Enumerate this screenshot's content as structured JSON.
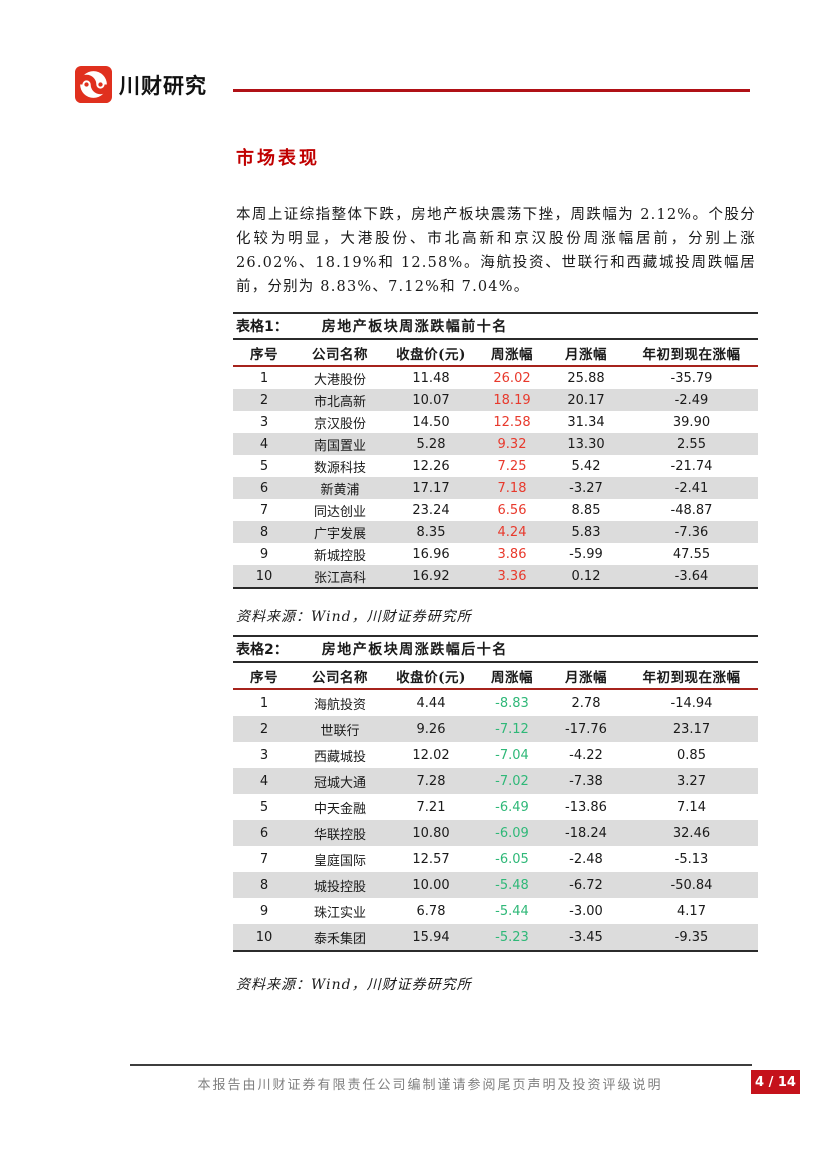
{
  "header": {
    "brand": "川财研究"
  },
  "section": {
    "title": "市场表现",
    "paragraph": "本周上证综指整体下跌，房地产板块震荡下挫，周跌幅为 2.12%。个股分化较为明显，大港股份、市北高新和京汉股份周涨幅居前，分别上涨 26.02%、18.19%和 12.58%。海航投资、世联行和西藏城投周跌幅居前，分别为 8.83%、7.12%和 7.04%。"
  },
  "table1": {
    "label": "表格1：",
    "title": "房地产板块周涨跌幅前十名",
    "columns": [
      "序号",
      "公司名称",
      "收盘价(元)",
      "周涨幅",
      "月涨幅",
      "年初到现在涨幅"
    ],
    "rows": [
      {
        "seq": "1",
        "name": "大港股份",
        "close": "11.48",
        "week": "26.02",
        "month": "25.88",
        "ytd": "-35.79"
      },
      {
        "seq": "2",
        "name": "市北高新",
        "close": "10.07",
        "week": "18.19",
        "month": "20.17",
        "ytd": "-2.49"
      },
      {
        "seq": "3",
        "name": "京汉股份",
        "close": "14.50",
        "week": "12.58",
        "month": "31.34",
        "ytd": "39.90"
      },
      {
        "seq": "4",
        "name": "南国置业",
        "close": "5.28",
        "week": "9.32",
        "month": "13.30",
        "ytd": "2.55"
      },
      {
        "seq": "5",
        "name": "数源科技",
        "close": "12.26",
        "week": "7.25",
        "month": "5.42",
        "ytd": "-21.74"
      },
      {
        "seq": "6",
        "name": "新黄浦",
        "close": "17.17",
        "week": "7.18",
        "month": "-3.27",
        "ytd": "-2.41"
      },
      {
        "seq": "7",
        "name": "同达创业",
        "close": "23.24",
        "week": "6.56",
        "month": "8.85",
        "ytd": "-48.87"
      },
      {
        "seq": "8",
        "name": "广宇发展",
        "close": "8.35",
        "week": "4.24",
        "month": "5.83",
        "ytd": "-7.36"
      },
      {
        "seq": "9",
        "name": "新城控股",
        "close": "16.96",
        "week": "3.86",
        "month": "-5.99",
        "ytd": "47.55"
      },
      {
        "seq": "10",
        "name": "张江高科",
        "close": "16.92",
        "week": "3.36",
        "month": "0.12",
        "ytd": "-3.64"
      }
    ],
    "source": "资料来源：Wind，川财证券研究所"
  },
  "table2": {
    "label": "表格2：",
    "title": "房地产板块周涨跌幅后十名",
    "columns": [
      "序号",
      "公司名称",
      "收盘价(元)",
      "周涨幅",
      "月涨幅",
      "年初到现在涨幅"
    ],
    "rows": [
      {
        "seq": "1",
        "name": "海航投资",
        "close": "4.44",
        "week": "-8.83",
        "month": "2.78",
        "ytd": "-14.94"
      },
      {
        "seq": "2",
        "name": "世联行",
        "close": "9.26",
        "week": "-7.12",
        "month": "-17.76",
        "ytd": "23.17"
      },
      {
        "seq": "3",
        "name": "西藏城投",
        "close": "12.02",
        "week": "-7.04",
        "month": "-4.22",
        "ytd": "0.85"
      },
      {
        "seq": "4",
        "name": "冠城大通",
        "close": "7.28",
        "week": "-7.02",
        "month": "-7.38",
        "ytd": "3.27"
      },
      {
        "seq": "5",
        "name": "中天金融",
        "close": "7.21",
        "week": "-6.49",
        "month": "-13.86",
        "ytd": "7.14"
      },
      {
        "seq": "6",
        "name": "华联控股",
        "close": "10.80",
        "week": "-6.09",
        "month": "-18.24",
        "ytd": "32.46"
      },
      {
        "seq": "7",
        "name": "皇庭国际",
        "close": "12.57",
        "week": "-6.05",
        "month": "-2.48",
        "ytd": "-5.13"
      },
      {
        "seq": "8",
        "name": "城投控股",
        "close": "10.00",
        "week": "-5.48",
        "month": "-6.72",
        "ytd": "-50.84"
      },
      {
        "seq": "9",
        "name": "珠江实业",
        "close": "6.78",
        "week": "-5.44",
        "month": "-3.00",
        "ytd": "4.17"
      },
      {
        "seq": "10",
        "name": "泰禾集团",
        "close": "15.94",
        "week": "-5.23",
        "month": "-3.45",
        "ytd": "-9.35"
      }
    ],
    "source": "资料来源：Wind，川财证券研究所"
  },
  "footer": {
    "note": "本报告由川财证券有限责任公司编制谨请参阅尾页声明及投资评级说明",
    "page": "4 / 14"
  },
  "colors": {
    "accent_red": "#b01116",
    "section_title_red": "#c00000",
    "week_up_red": "#e8392c",
    "week_down_green": "#2fb878",
    "row_alt_gray": "#dcdcdc",
    "badge_red": "#c5121b"
  }
}
